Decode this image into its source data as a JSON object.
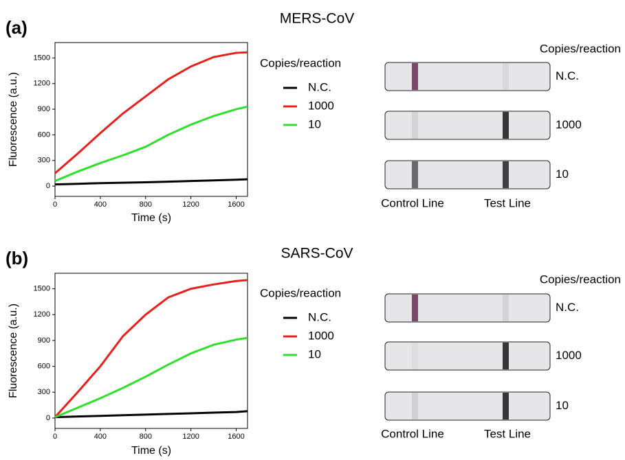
{
  "chart_data": [
    {
      "type": "line",
      "panel_label": "(a)",
      "title": "MERS-CoV",
      "xlabel": "Time (s)",
      "ylabel": "Fluorescence (a.u.)",
      "x": [
        0,
        200,
        400,
        600,
        800,
        1000,
        1200,
        1400,
        1600,
        1700
      ],
      "xlim": [
        0,
        1700
      ],
      "xticks": [
        0,
        400,
        800,
        1200,
        1600
      ],
      "ylim": [
        -120,
        1680
      ],
      "yticks": [
        0,
        300,
        600,
        900,
        1200,
        1500
      ],
      "legend_title": "Copies/reaction",
      "series": [
        {
          "name": "N.C.",
          "color": "#000000",
          "values": [
            20,
            27,
            35,
            40,
            45,
            52,
            60,
            67,
            75,
            80
          ]
        },
        {
          "name": "1000",
          "color": "#e8201c",
          "values": [
            150,
            380,
            620,
            850,
            1050,
            1250,
            1400,
            1510,
            1560,
            1565
          ]
        },
        {
          "name": "10",
          "color": "#2ee02a",
          "values": [
            60,
            170,
            270,
            360,
            460,
            600,
            720,
            820,
            900,
            930
          ]
        }
      ],
      "strips": {
        "title": "Copies/reaction",
        "labels": [
          "N.C.",
          "1000",
          "10"
        ],
        "control_label": "Control Line",
        "test_label": "Test Line"
      }
    },
    {
      "type": "line",
      "panel_label": "(b)",
      "title": "SARS-CoV",
      "xlabel": "Time (s)",
      "ylabel": "Fluorescence (a.u.)",
      "x": [
        0,
        200,
        400,
        600,
        800,
        1000,
        1200,
        1400,
        1600,
        1700
      ],
      "xlim": [
        0,
        1700
      ],
      "xticks": [
        0,
        400,
        800,
        1200,
        1600
      ],
      "ylim": [
        -120,
        1680
      ],
      "yticks": [
        0,
        300,
        600,
        900,
        1200,
        1500
      ],
      "legend_title": "Copies/reaction",
      "series": [
        {
          "name": "N.C.",
          "color": "#000000",
          "values": [
            10,
            18,
            25,
            33,
            40,
            48,
            55,
            63,
            70,
            80
          ]
        },
        {
          "name": "1000",
          "color": "#e8201c",
          "values": [
            10,
            300,
            600,
            950,
            1200,
            1400,
            1500,
            1550,
            1590,
            1600
          ]
        },
        {
          "name": "10",
          "color": "#2ee02a",
          "values": [
            10,
            120,
            230,
            350,
            480,
            620,
            750,
            850,
            910,
            930
          ]
        }
      ],
      "strips": {
        "title": "Copies/reaction",
        "labels": [
          "N.C.",
          "1000",
          "10"
        ],
        "control_label": "Control Line",
        "test_label": "Test Line"
      }
    }
  ]
}
